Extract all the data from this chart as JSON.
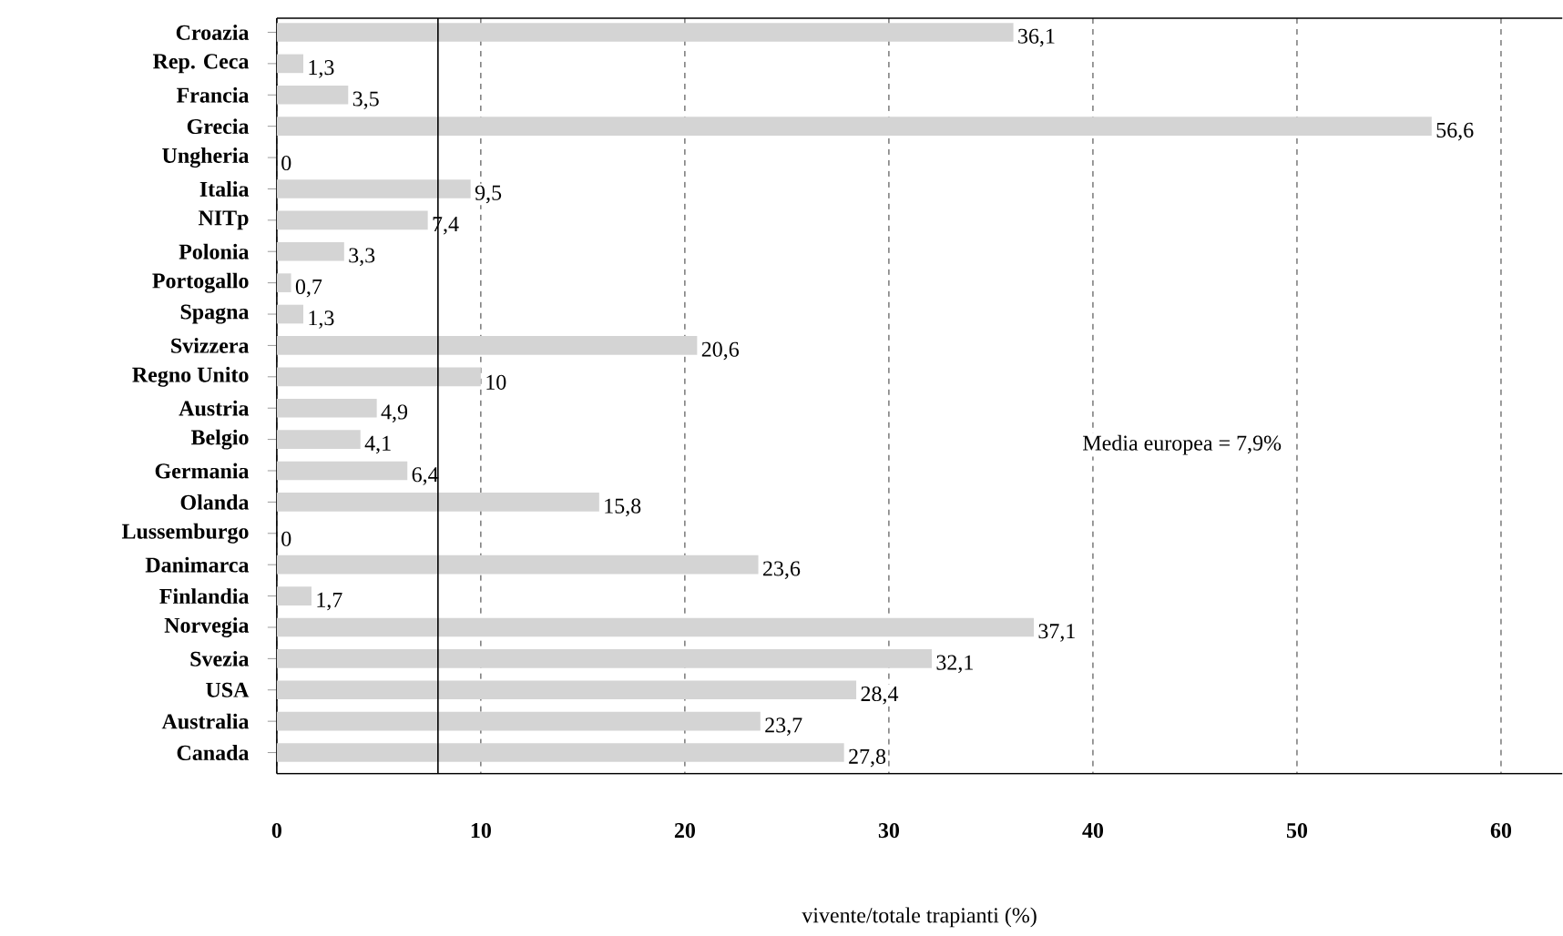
{
  "chart_data": {
    "type": "bar",
    "orientation": "horizontal",
    "xlabel": "vivente/totale trapianti (%)",
    "categories": [
      "Croazia",
      "Rep. Ceca",
      "Francia",
      "Grecia",
      "Ungheria",
      "Italia",
      "NITp",
      "Polonia",
      "Portogallo",
      "Spagna",
      "Svizzera",
      "Regno Unito",
      "Austria",
      "Belgio",
      "Germania",
      "Olanda",
      "Lussemburgo",
      "Danimarca",
      "Finlandia",
      "Norvegia",
      "Svezia",
      "USA",
      "Australia",
      "Canada"
    ],
    "values": [
      36.1,
      1.3,
      3.5,
      56.6,
      0,
      9.5,
      7.4,
      3.3,
      0.7,
      1.3,
      20.6,
      10,
      4.9,
      4.1,
      6.4,
      15.8,
      0,
      23.6,
      1.7,
      37.1,
      32.1,
      28.4,
      23.7,
      27.8
    ],
    "value_labels": [
      "36,1",
      "1,3",
      "3,5",
      "56,6",
      "0",
      "9,5",
      "7,4",
      "3,3",
      "0,7",
      "1,3",
      "20,6",
      "10",
      "4,9",
      "4,1",
      "6,4",
      "15,8",
      "0",
      "23,6",
      "1,7",
      "37,1",
      "32,1",
      "28,4",
      "23,7",
      "27,8"
    ],
    "color": "#d4d4d4",
    "xlim": [
      0,
      63
    ],
    "xticks": [
      0,
      10,
      20,
      30,
      40,
      50,
      60
    ],
    "grid": "x",
    "ref_lines": [
      {
        "axis": "x",
        "value": 7.9,
        "label": "Media europea = 7,9%",
        "color": "#000000",
        "line_style": "solid"
      }
    ]
  }
}
